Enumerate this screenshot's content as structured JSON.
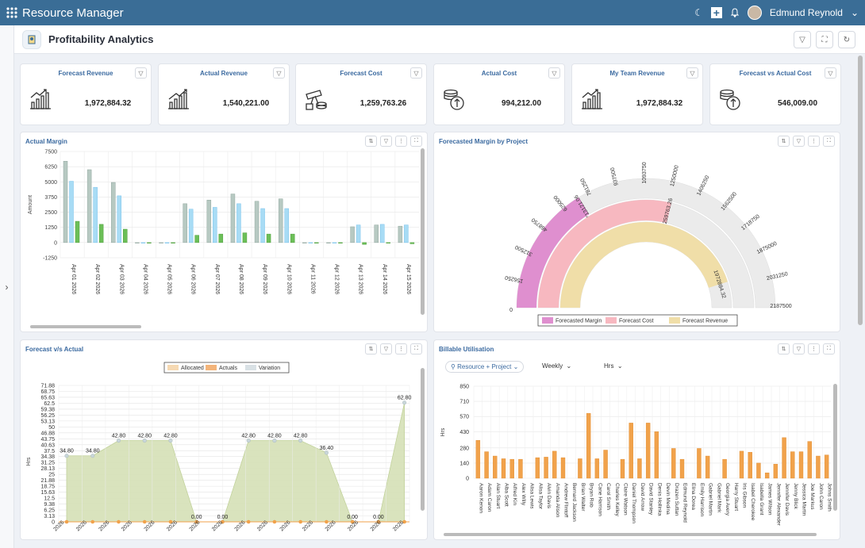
{
  "app": {
    "title": "Resource Manager",
    "user": "Edmund Reynold",
    "accent": "#3a6d96"
  },
  "page": {
    "title": "Profitability Analytics"
  },
  "kpis": [
    {
      "title": "Forecast Revenue",
      "value": "1,972,884.32",
      "icon": "revenue-chart-icon"
    },
    {
      "title": "Actual Revenue",
      "value": "1,540,221.00",
      "icon": "growth-chart-icon"
    },
    {
      "title": "Forecast Cost",
      "value": "1,259,763.26",
      "icon": "cost-telescope-icon"
    },
    {
      "title": "Actual Cost",
      "value": "994,212.00",
      "icon": "coin-stack-icon"
    },
    {
      "title": "My Team Revenue",
      "value": "1,972,884.32",
      "icon": "revenue-chart-icon"
    },
    {
      "title": "Forecast vs Actual Cost",
      "value": "546,009.00",
      "icon": "coin-stack-icon"
    }
  ],
  "panels": {
    "actual_margin": "Actual Margin",
    "forecasted_margin": "Forecasted Margin by Project",
    "forecast_vs_actual": "Forecast v/s Actual",
    "billable": "Billable Utilisation"
  },
  "controls": {
    "resource_project": "Resource + Project",
    "weekly": "Weekly",
    "hrs": "Hrs"
  },
  "chart_data": [
    {
      "type": "bar",
      "title": "Actual Margin",
      "ylabel": "Amount",
      "ylim": [
        -1250,
        7500
      ],
      "yticks": [
        "7500",
        "6250",
        "5000",
        "3750",
        "2500",
        "1250",
        "0",
        "-1250"
      ],
      "categories": [
        "Apr 01 2026",
        "Apr 02 2026",
        "Apr 03 2026",
        "Apr 04 2026",
        "Apr 05 2026",
        "Apr 06 2026",
        "Apr 07 2026",
        "Apr 08 2026",
        "Apr 09 2026",
        "Apr 10 2026",
        "Apr 11 2026",
        "Apr 12 2026",
        "Apr 13 2026",
        "Apr 14 2026",
        "Apr 15 2026"
      ],
      "series": [
        {
          "color": "#b7c9c2",
          "values": [
            6700,
            6000,
            4950,
            0,
            0,
            3200,
            3500,
            4000,
            3400,
            3600,
            0,
            0,
            1300,
            1450,
            1350
          ]
        },
        {
          "color": "#a8dcf5",
          "values": [
            5050,
            4550,
            3850,
            0,
            0,
            2750,
            2900,
            3200,
            2800,
            2800,
            0,
            0,
            1450,
            1500,
            1450
          ]
        },
        {
          "color": "#6cbf58",
          "values": [
            1750,
            1500,
            1100,
            0,
            0,
            600,
            700,
            800,
            700,
            700,
            0,
            0,
            -150,
            -50,
            -100
          ]
        }
      ]
    },
    {
      "type": "gauge",
      "title": "Forecasted Margin by Project",
      "max": 2187500,
      "ticks": [
        "0",
        "156250",
        "312500",
        "468750",
        "625000",
        "781250",
        "937500",
        "1093750",
        "1250000",
        "1406250",
        "1562500",
        "1718750",
        "1875000",
        "2031250",
        "2187500"
      ],
      "series": [
        {
          "name": "Forecasted Margin",
          "value": 713121.06,
          "label": "713121.06",
          "color": "#df8fcf"
        },
        {
          "name": "Forecast Cost",
          "value": 1259763.26,
          "label": "1259763.26",
          "color": "#f7b8c0"
        },
        {
          "name": "Forecast Revenue",
          "value": 1972884.32,
          "label": "1972884.32",
          "color": "#f0dea8"
        }
      ]
    },
    {
      "type": "area",
      "title": "Forecast v/s Actual",
      "ylabel": "Hrs",
      "ylim": [
        0,
        71.88
      ],
      "yticks": [
        "71.88",
        "68.75",
        "65.63",
        "62.5",
        "59.38",
        "56.25",
        "53.13",
        "50",
        "46.88",
        "43.75",
        "40.63",
        "37.5",
        "34.38",
        "31.25",
        "28.13",
        "25",
        "21.88",
        "18.75",
        "15.63",
        "12.5",
        "9.38",
        "6.25",
        "3.13",
        "0"
      ],
      "legend": [
        "Allocated",
        "Actuals",
        "Variation"
      ],
      "xlabels": [
        "2026",
        "2026",
        "2026",
        "2026",
        "2026",
        "2026",
        "2026",
        "2026",
        "2026",
        "2026",
        "2026",
        "2026",
        "2026",
        "2026",
        "2026",
        "2026"
      ],
      "series": [
        {
          "name": "Variation",
          "values": [
            34.8,
            34.8,
            42.8,
            42.8,
            42.8,
            0,
            0,
            42.8,
            42.8,
            42.8,
            36.4,
            0,
            0,
            62.8
          ],
          "labels": [
            "34.80",
            "34.80",
            "42.80",
            "42.80",
            "42.80",
            "0.00",
            "0.00",
            "42.80",
            "42.80",
            "42.80",
            "36.40",
            "0.00",
            "0.00",
            "62.80"
          ]
        },
        {
          "name": "Actuals",
          "values": [
            0,
            0,
            0,
            0,
            0,
            0,
            0,
            0,
            0,
            0,
            0,
            0,
            0,
            0
          ],
          "labels": [
            "0.00",
            "0.00",
            "0.00",
            "0.00",
            "0.00",
            "0.00",
            "0.00",
            "0.00",
            "0.00",
            "0.00",
            "0.00",
            "0.00",
            "0.00",
            "0.00"
          ]
        }
      ]
    },
    {
      "type": "bar",
      "title": "Billable Utilisation",
      "ylabel": "Hrs",
      "ylim": [
        0,
        850
      ],
      "yticks": [
        "850",
        "710",
        "570",
        "430",
        "280",
        "140",
        "0"
      ],
      "categories": [
        "Aaron Kenon",
        "Adam Caron",
        "Alan Stuart",
        "Alba Scott",
        "Alfred Kin",
        "Alex Willy",
        "Alisa Lewis",
        "Alisa Taylor",
        "Alvin Davis",
        "Amanda Alison",
        "Andrew Flintoff",
        "Bernard Jackson",
        "Brian Walter",
        "Bryan Rob",
        "Cane Harrison",
        "Carol Smith",
        "Charles Kelley",
        "Claire Watson",
        "Daniel Thompson",
        "David Arrow",
        "David Stanley",
        "Denis Hollinka",
        "Devin Medina",
        "Drazen Suttan",
        "Edmund Reynold",
        "Elina Dorea",
        "Emily Harrison",
        "Gabriel Martin",
        "Gabriel Mark",
        "Georgia Avery",
        "Harry Stuart",
        "Iris Gibson",
        "Isabel Cherokee",
        "Isabella Grant",
        "James Wilson",
        "Jennifer Alexander",
        "Jennifer Davis",
        "Jenny Blick",
        "Jessica Martin",
        "Joe Markus",
        "John Caron",
        "Johns Smith"
      ],
      "values": [
        350,
        245,
        205,
        180,
        175,
        175,
        0,
        190,
        195,
        250,
        190,
        0,
        180,
        600,
        180,
        260,
        0,
        175,
        510,
        180,
        510,
        430,
        0,
        275,
        175,
        0,
        275,
        205,
        0,
        175,
        0,
        250,
        240,
        140,
        50,
        130,
        375,
        245,
        245,
        340,
        205,
        215
      ],
      "color": "#f1a24b"
    }
  ]
}
